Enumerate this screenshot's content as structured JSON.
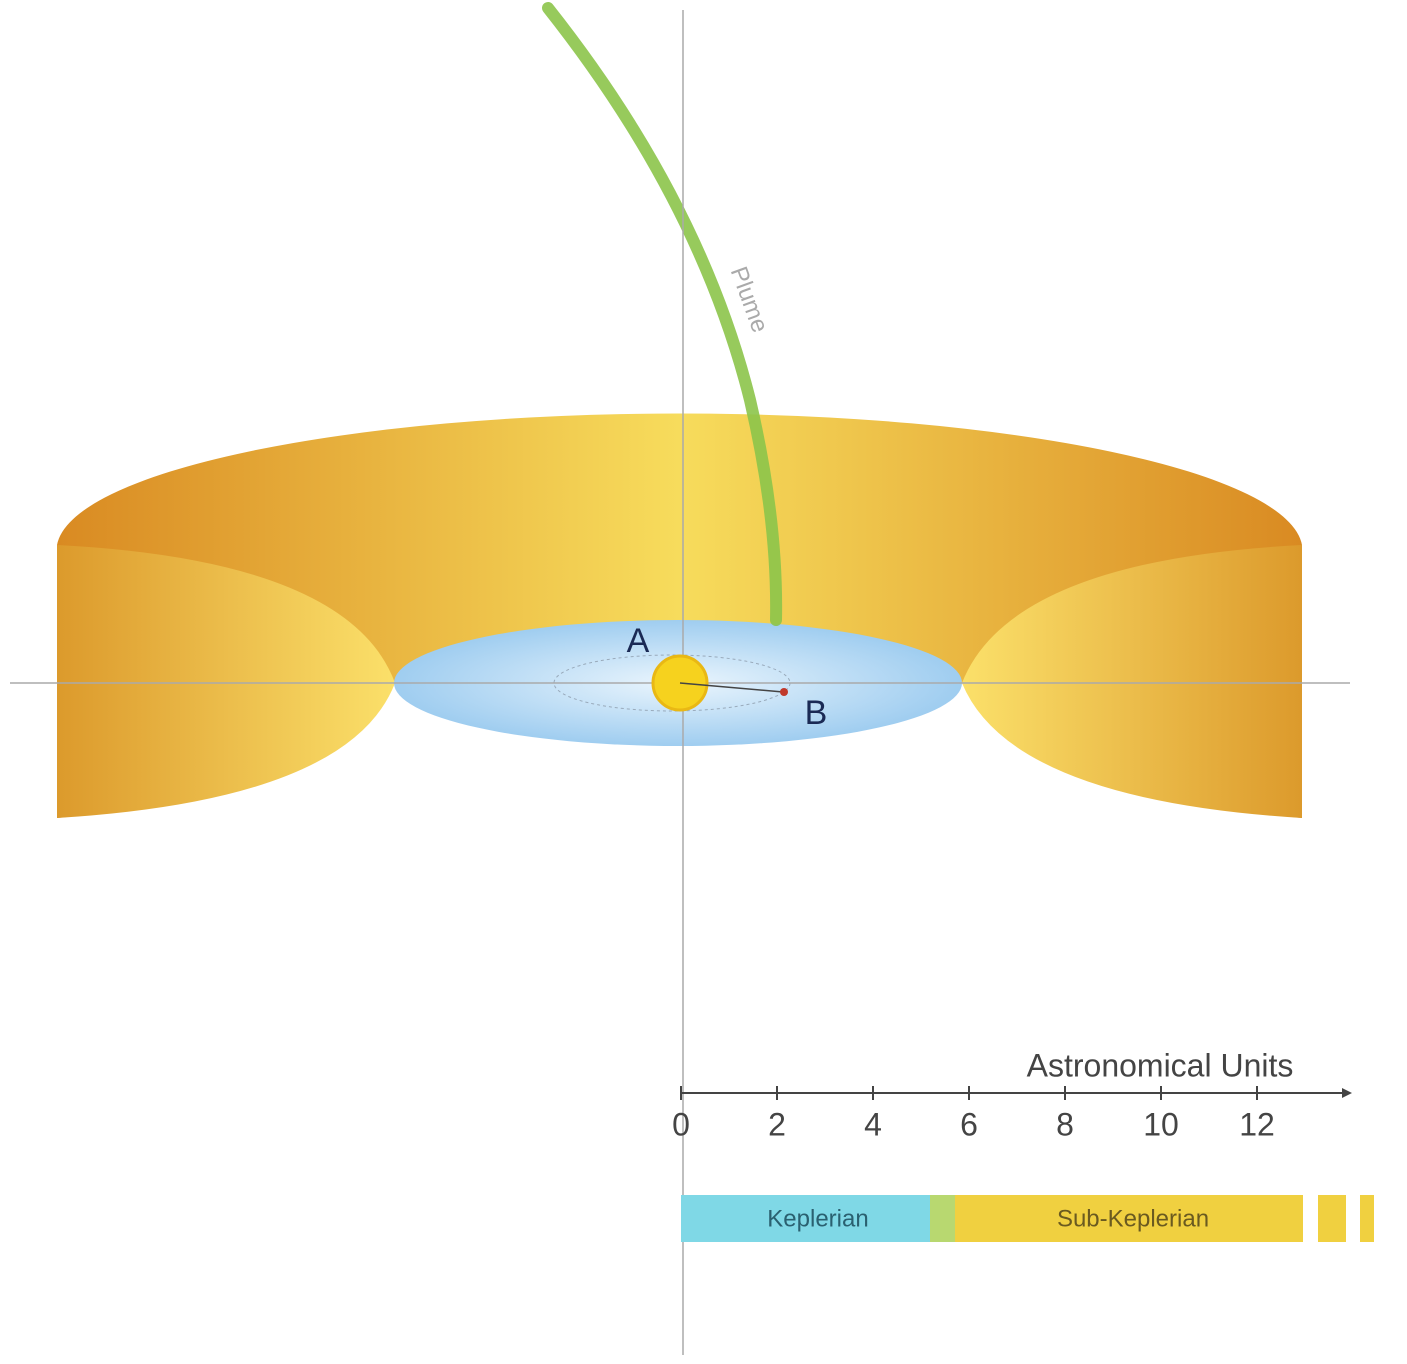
{
  "labels": {
    "plume": "Plume",
    "a": "A",
    "b": "B"
  },
  "axis": {
    "label": "Astronomical Units",
    "ticks": [
      0,
      2,
      4,
      6,
      8,
      10,
      12
    ]
  },
  "bands": {
    "keplerian": "Keplerian",
    "sub_keplerian": "Sub-Keplerian"
  }
}
